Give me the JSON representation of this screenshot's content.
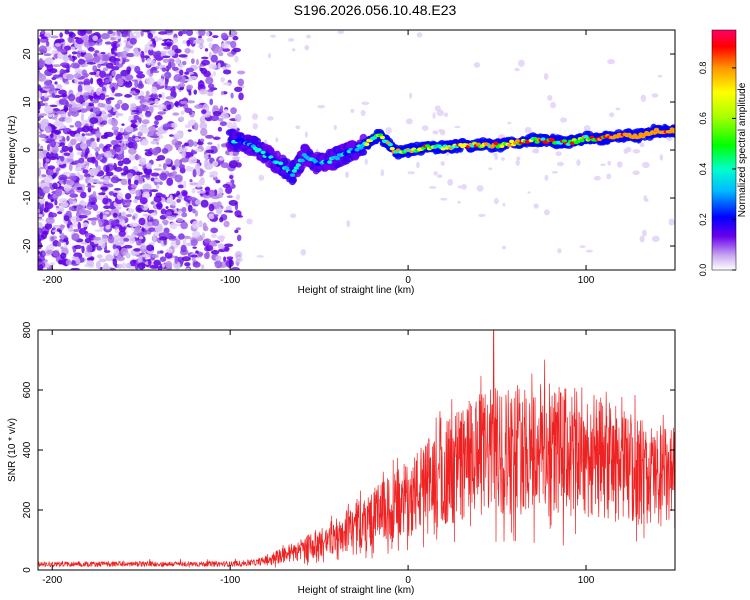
{
  "figure": {
    "title": "S196.2026.056.10.48.E23"
  },
  "chart_data": [
    {
      "type": "heatmap",
      "name": "spectrogram",
      "xlabel": "Height of straight line (km)",
      "ylabel": "Frequency (Hz)",
      "xlim": [
        -208,
        150
      ],
      "ylim": [
        -25,
        25
      ],
      "xticks": [
        -200,
        -100,
        0,
        100
      ],
      "yticks": [
        -20,
        -10,
        0,
        10,
        20
      ],
      "ridge": {
        "description": "dominant frequency track",
        "x": [
          -95,
          -88,
          -80,
          -72,
          -65,
          -58,
          -50,
          -43,
          -37,
          -30,
          -25,
          -20,
          -16,
          -12,
          -8,
          -5,
          0,
          10,
          20,
          30,
          40,
          50,
          60,
          70,
          80,
          90,
          100,
          110,
          120,
          130,
          140,
          150
        ],
        "y": [
          2,
          1,
          -1,
          -3,
          -5,
          -1,
          -3,
          -2,
          -1,
          0,
          1,
          2,
          3.5,
          1.5,
          0,
          -0.5,
          0,
          0.5,
          0.5,
          1,
          1,
          1,
          1.5,
          2,
          2,
          1.5,
          2.5,
          2.5,
          3,
          3,
          4,
          4
        ]
      },
      "colorbar": {
        "label": "Normalized spectral amplitude",
        "range": [
          0,
          0.95
        ],
        "ticks": [
          0.0,
          0.2,
          0.4,
          0.6,
          0.8
        ],
        "tick_labels": [
          "0.0",
          "0.2",
          "0.4",
          "0.6",
          "0.8"
        ]
      }
    },
    {
      "type": "line",
      "name": "snr",
      "xlabel": "Height of straight line (km)",
      "ylabel": "SNR (10 * v/v)",
      "xlim": [
        -208,
        150
      ],
      "ylim": [
        0,
        800
      ],
      "xticks": [
        -200,
        -100,
        0,
        100
      ],
      "yticks": [
        0,
        200,
        400,
        600,
        800
      ],
      "series": [
        {
          "name": "SNR",
          "color": "#ee2222",
          "envelope_x": [
            -208,
            -150,
            -100,
            -85,
            -75,
            -65,
            -55,
            -45,
            -35,
            -25,
            -15,
            -5,
            5,
            15,
            25,
            35,
            45,
            55,
            65,
            75,
            85,
            95,
            105,
            115,
            125,
            135,
            150
          ],
          "envelope_y": [
            20,
            20,
            20,
            25,
            40,
            60,
            80,
            100,
            130,
            160,
            190,
            220,
            260,
            300,
            340,
            370,
            390,
            400,
            410,
            410,
            400,
            390,
            380,
            360,
            340,
            320,
            300
          ]
        }
      ]
    }
  ]
}
